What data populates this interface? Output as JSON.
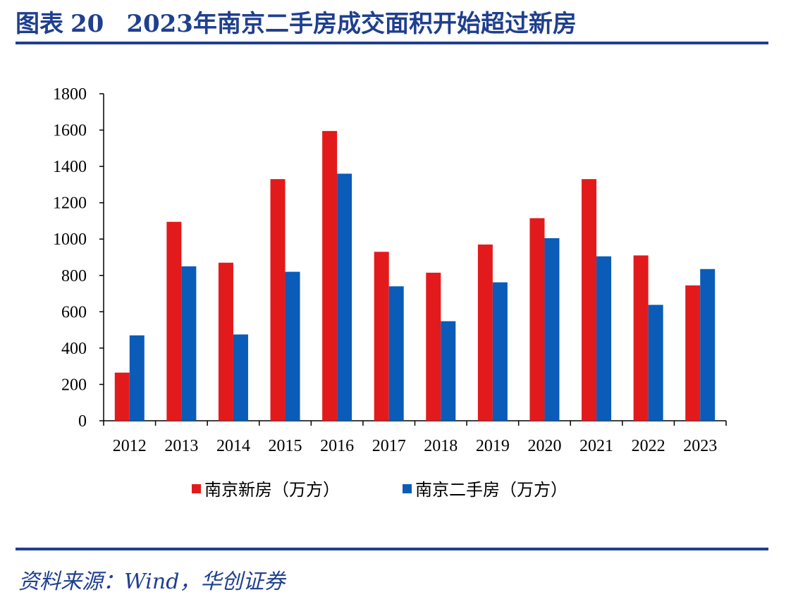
{
  "header": {
    "label": "图表",
    "number": "20",
    "title": "2023年南京二手房成交面积开始超过新房"
  },
  "footer": {
    "source": "资料来源：Wind，华创证券"
  },
  "colors": {
    "series1": "#e31a1c",
    "series2": "#0a5cb8",
    "accent": "#1f3f8f"
  },
  "chart_data": {
    "type": "bar",
    "categories": [
      "2012",
      "2013",
      "2014",
      "2015",
      "2016",
      "2017",
      "2018",
      "2019",
      "2020",
      "2021",
      "2022",
      "2023"
    ],
    "series": [
      {
        "name": "南京新房（万方）",
        "values": [
          265,
          1095,
          870,
          1330,
          1595,
          930,
          815,
          970,
          1115,
          1330,
          910,
          745
        ]
      },
      {
        "name": "南京二手房（万方）",
        "values": [
          470,
          850,
          475,
          820,
          1360,
          740,
          548,
          762,
          1005,
          905,
          638,
          835
        ]
      }
    ],
    "ylim": [
      0,
      1800
    ],
    "yticks": [
      0,
      200,
      400,
      600,
      800,
      1000,
      1200,
      1400,
      1600,
      1800
    ],
    "xlabel": "",
    "ylabel": "",
    "grid": false,
    "legend_position": "bottom"
  }
}
